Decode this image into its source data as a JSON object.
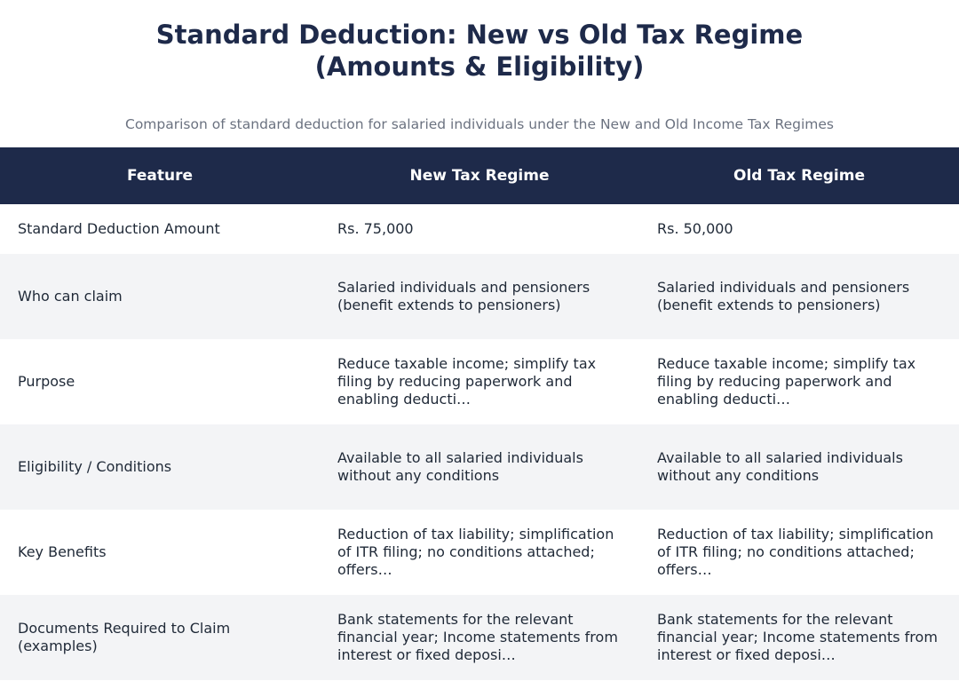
{
  "page": {
    "title_line1": "Standard Deduction: New vs Old Tax Regime",
    "title_line2": "(Amounts & Eligibility)",
    "subtitle": "Comparison of standard deduction for salaried individuals under the New and Old Income Tax Regimes"
  },
  "table": {
    "headers": [
      "Feature",
      "New Tax Regime",
      "Old Tax Regime"
    ],
    "rows": [
      [
        "Standard Deduction Amount",
        "Rs. 75,000",
        "Rs. 50,000"
      ],
      [
        "Who can claim",
        "Salaried individuals and pensioners (benefit extends to pensioners)",
        "Salaried individuals and pensioners (benefit extends to pensioners)"
      ],
      [
        "Purpose",
        "Reduce taxable income; simplify tax filing by reducing paperwork and enabling deducti…",
        "Reduce taxable income; simplify tax filing by reducing paperwork and enabling deducti…"
      ],
      [
        "Eligibility / Conditions",
        "Available to all salaried individuals without any conditions",
        "Available to all salaried individuals without any conditions"
      ],
      [
        "Key Benefits",
        "Reduction of tax liability; simplification of ITR filing; no conditions attached; offers…",
        "Reduction of tax liability; simplification of ITR filing; no conditions attached; offers…"
      ],
      [
        "Documents Required to Claim (examples)",
        "Bank statements for the relevant financial year; Income statements from interest or fixed deposi…",
        "Bank statements for the relevant financial year; Income statements from interest or fixed deposi…"
      ]
    ]
  },
  "colors": {
    "header_bg": "#1e2a4a",
    "title": "#1e2a4a",
    "row_alt_bg": "#f3f4f6",
    "subtitle": "#6b7280"
  }
}
